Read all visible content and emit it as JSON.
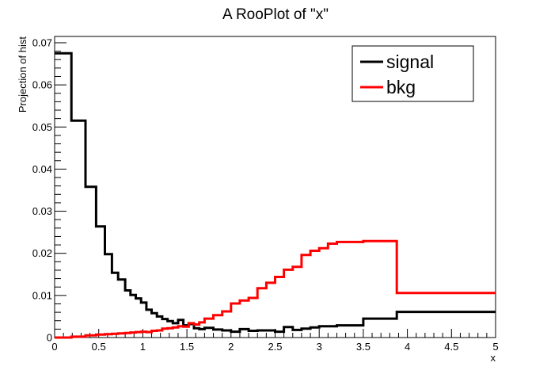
{
  "chart_data": {
    "type": "line",
    "title": "A RooPlot of \"x\"",
    "xlabel": "x",
    "ylabel": "Projection of hist",
    "xlim": [
      0,
      5
    ],
    "ylim": [
      0,
      0.0715
    ],
    "x_ticks": [
      0,
      0.5,
      1,
      1.5,
      2,
      2.5,
      3,
      3.5,
      4,
      4.5,
      5
    ],
    "x_tick_labels": [
      "0",
      "0.5",
      "1",
      "1.5",
      "2",
      "2.5",
      "3",
      "3.5",
      "4",
      "4.5",
      "5"
    ],
    "y_ticks": [
      0,
      0.01,
      0.02,
      0.03,
      0.04,
      0.05,
      0.06,
      0.07
    ],
    "y_tick_labels": [
      "0",
      "0.01",
      "0.02",
      "0.03",
      "0.04",
      "0.05",
      "0.06",
      "0.07"
    ],
    "legend_position": "top-right",
    "series": [
      {
        "name": "signal",
        "color": "#000000",
        "step": true,
        "x": [
          0,
          0.19,
          0.35,
          0.47,
          0.57,
          0.65,
          0.72,
          0.8,
          0.86,
          0.92,
          0.98,
          1.04,
          1.1,
          1.16,
          1.22,
          1.28,
          1.34,
          1.4,
          1.46,
          1.52,
          1.58,
          1.64,
          1.7,
          1.8,
          1.9,
          2.0,
          2.1,
          2.2,
          2.3,
          2.4,
          2.5,
          2.6,
          2.7,
          2.8,
          2.9,
          3.0,
          3.2,
          3.5,
          3.88,
          5.0
        ],
        "y": [
          0.0675,
          0.0515,
          0.0358,
          0.0264,
          0.0198,
          0.0154,
          0.0138,
          0.0112,
          0.0101,
          0.0093,
          0.0083,
          0.0066,
          0.0058,
          0.005,
          0.0044,
          0.0039,
          0.0034,
          0.0042,
          0.0029,
          0.0032,
          0.0022,
          0.002,
          0.0023,
          0.0019,
          0.0017,
          0.0014,
          0.002,
          0.0016,
          0.0017,
          0.0017,
          0.0014,
          0.0025,
          0.0018,
          0.0021,
          0.0024,
          0.0027,
          0.0029,
          0.0045,
          0.0061,
          0.0061
        ]
      },
      {
        "name": "bkg",
        "color": "#ff0000",
        "step": true,
        "x": [
          0,
          0.19,
          0.35,
          0.47,
          0.57,
          0.65,
          0.72,
          0.8,
          0.86,
          0.92,
          0.98,
          1.04,
          1.1,
          1.16,
          1.22,
          1.28,
          1.34,
          1.4,
          1.46,
          1.52,
          1.58,
          1.64,
          1.7,
          1.8,
          1.9,
          2.0,
          2.1,
          2.2,
          2.3,
          2.4,
          2.5,
          2.6,
          2.7,
          2.8,
          2.9,
          3.0,
          3.1,
          3.2,
          3.5,
          3.88,
          5.0
        ],
        "y": [
          0.0,
          0.0002,
          0.0005,
          0.0007,
          0.0008,
          0.0009,
          0.001,
          0.0011,
          0.0012,
          0.0013,
          0.0014,
          0.0013,
          0.0016,
          0.0017,
          0.0021,
          0.0022,
          0.0024,
          0.0027,
          0.0026,
          0.0034,
          0.0031,
          0.0036,
          0.0045,
          0.0053,
          0.0062,
          0.0081,
          0.0088,
          0.0094,
          0.0117,
          0.013,
          0.0144,
          0.0161,
          0.0168,
          0.0196,
          0.0206,
          0.0212,
          0.0223,
          0.0227,
          0.0229,
          0.0106,
          0.0106
        ]
      }
    ]
  }
}
